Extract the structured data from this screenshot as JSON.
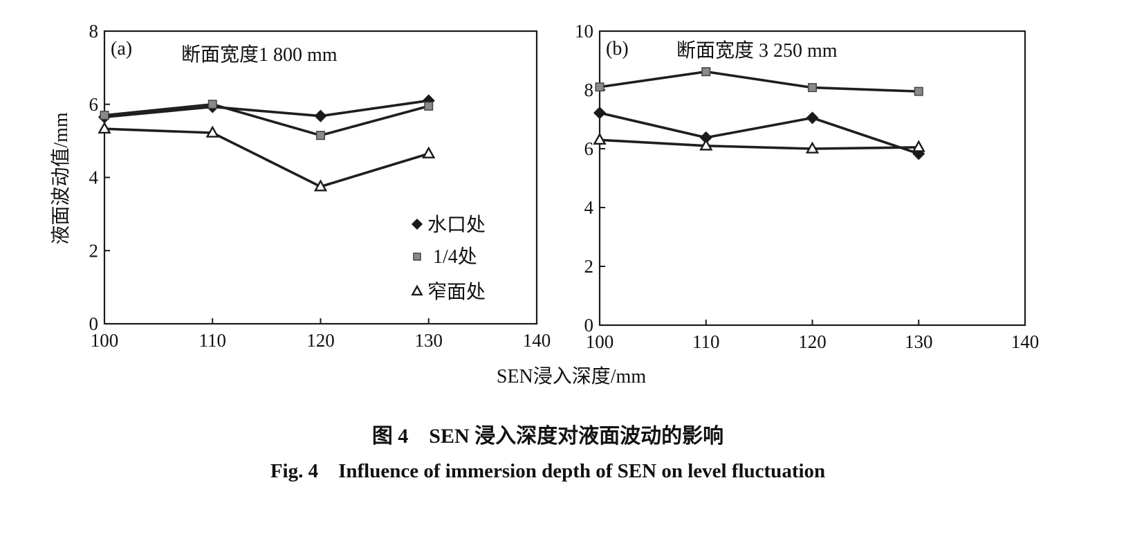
{
  "figure": {
    "caption_cn": "图 4　SEN 浸入深度对液面波动的影响",
    "caption_en": "Fig. 4　Influence of immersion depth of SEN on level fluctuation",
    "shared_ylabel": "液面波动值/mm",
    "shared_xlabel": "SEN浸入深度/mm"
  },
  "chart_data": [
    {
      "type": "line",
      "panel_label": "(a)",
      "title": "断面宽度1 800 mm",
      "xlabel": "SEN浸入深度/mm",
      "ylabel": "液面波动值/mm",
      "xlim": [
        100,
        140
      ],
      "ylim": [
        0,
        8
      ],
      "xticks": [
        100,
        110,
        120,
        130,
        140
      ],
      "yticks": [
        0,
        2,
        4,
        6,
        8
      ],
      "x": [
        100,
        110,
        120,
        130
      ],
      "grid": false,
      "legend_position": "right-middle",
      "series": [
        {
          "name": "水口处",
          "marker": "diamond",
          "values": [
            5.65,
            5.93,
            5.68,
            6.1
          ]
        },
        {
          "name": "1/4处",
          "marker": "square",
          "values": [
            5.7,
            6.0,
            5.15,
            5.95
          ]
        },
        {
          "name": "窄面处",
          "marker": "triangle",
          "values": [
            5.33,
            5.22,
            3.75,
            4.65
          ]
        }
      ]
    },
    {
      "type": "line",
      "panel_label": "(b)",
      "title": "断面宽度 3 250 mm",
      "xlabel": "SEN浸入深度/mm",
      "ylabel": "液面波动值/mm",
      "xlim": [
        100,
        140
      ],
      "ylim": [
        0,
        10
      ],
      "xticks": [
        100,
        110,
        120,
        130,
        140
      ],
      "yticks": [
        0,
        2,
        4,
        6,
        8,
        10
      ],
      "x": [
        100,
        110,
        120,
        130
      ],
      "grid": false,
      "series": [
        {
          "name": "水口处",
          "marker": "diamond",
          "values": [
            7.22,
            6.38,
            7.05,
            5.83
          ]
        },
        {
          "name": "1/4处",
          "marker": "square",
          "values": [
            8.1,
            8.62,
            8.08,
            7.95
          ]
        },
        {
          "name": "窄面处",
          "marker": "triangle",
          "values": [
            6.3,
            6.1,
            6.0,
            6.05
          ]
        }
      ]
    }
  ]
}
